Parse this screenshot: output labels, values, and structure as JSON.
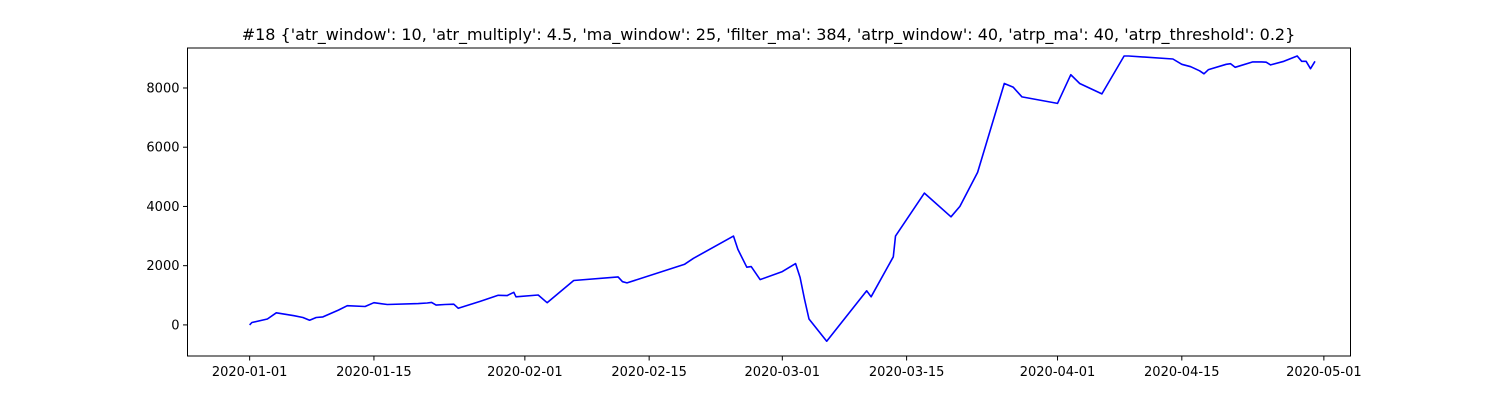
{
  "chart_data": {
    "type": "line",
    "title": "#18 {'atr_window': 10, 'atr_multiply': 4.5, 'ma_window': 25, 'filter_ma': 384, 'atrp_window': 40, 'atrp_ma': 40, 'atrp_threshold': 0.2}",
    "xlabel": "",
    "ylabel": "",
    "xlim": [
      "2019-12-25",
      "2020-05-04"
    ],
    "ylim": [
      -1050,
      9350
    ],
    "x_ticks": [
      "2020-01-01",
      "2020-01-15",
      "2020-02-01",
      "2020-02-15",
      "2020-03-01",
      "2020-03-15",
      "2020-04-01",
      "2020-04-15",
      "2020-05-01"
    ],
    "y_ticks": [
      0,
      2000,
      4000,
      6000,
      8000
    ],
    "grid": false,
    "legend": "none",
    "series": [
      {
        "color": "#0000ff",
        "points": [
          [
            "2020-01-01",
            0
          ],
          [
            "2020-01-01 06:00",
            80
          ],
          [
            "2020-01-03",
            200
          ],
          [
            "2020-01-04",
            410
          ],
          [
            "2020-01-06",
            310
          ],
          [
            "2020-01-07",
            250
          ],
          [
            "2020-01-07 18:00",
            160
          ],
          [
            "2020-01-08 12:00",
            250
          ],
          [
            "2020-01-09 06:00",
            270
          ],
          [
            "2020-01-11",
            500
          ],
          [
            "2020-01-12",
            650
          ],
          [
            "2020-01-14",
            620
          ],
          [
            "2020-01-15",
            750
          ],
          [
            "2020-01-16 12:00",
            690
          ],
          [
            "2020-01-20",
            720
          ],
          [
            "2020-01-21",
            740
          ],
          [
            "2020-01-21 12:00",
            760
          ],
          [
            "2020-01-22",
            670
          ],
          [
            "2020-01-23",
            690
          ],
          [
            "2020-01-24",
            700
          ],
          [
            "2020-01-24 12:00",
            560
          ],
          [
            "2020-01-27",
            800
          ],
          [
            "2020-01-29",
            1000
          ],
          [
            "2020-01-30",
            990
          ],
          [
            "2020-01-30 18:00",
            1100
          ],
          [
            "2020-01-31",
            950
          ],
          [
            "2020-02-02 12:00",
            1010
          ],
          [
            "2020-02-03 12:00",
            750
          ],
          [
            "2020-02-06 12:00",
            1500
          ],
          [
            "2020-02-11 12:00",
            1620
          ],
          [
            "2020-02-12",
            1460
          ],
          [
            "2020-02-12 12:00",
            1420
          ],
          [
            "2020-02-19",
            2050
          ],
          [
            "2020-02-20",
            2250
          ],
          [
            "2020-02-24 12:00",
            3000
          ],
          [
            "2020-02-25",
            2550
          ],
          [
            "2020-02-26",
            1950
          ],
          [
            "2020-02-26 12:00",
            1970
          ],
          [
            "2020-02-27 12:00",
            1530
          ],
          [
            "2020-03-01",
            1800
          ],
          [
            "2020-03-02 12:00",
            2070
          ],
          [
            "2020-03-03",
            1600
          ],
          [
            "2020-03-03 12:00",
            870
          ],
          [
            "2020-03-04",
            200
          ],
          [
            "2020-03-06",
            -550
          ],
          [
            "2020-03-10 12:00",
            1150
          ],
          [
            "2020-03-11",
            950
          ],
          [
            "2020-03-13 12:00",
            2300
          ],
          [
            "2020-03-13 18:00",
            3000
          ],
          [
            "2020-03-17",
            4450
          ],
          [
            "2020-03-20",
            3650
          ],
          [
            "2020-03-21",
            4000
          ],
          [
            "2020-03-23",
            5150
          ],
          [
            "2020-03-26",
            8150
          ],
          [
            "2020-03-27",
            8030
          ],
          [
            "2020-03-28",
            7700
          ],
          [
            "2020-04-01",
            7480
          ],
          [
            "2020-04-02 12:00",
            8450
          ],
          [
            "2020-04-03 12:00",
            8150
          ],
          [
            "2020-04-06",
            7800
          ],
          [
            "2020-04-08 12:00",
            9080
          ],
          [
            "2020-04-09",
            9080
          ],
          [
            "2020-04-14",
            8980
          ],
          [
            "2020-04-15",
            8800
          ],
          [
            "2020-04-16",
            8720
          ],
          [
            "2020-04-17",
            8580
          ],
          [
            "2020-04-17 12:00",
            8480
          ],
          [
            "2020-04-18",
            8620
          ],
          [
            "2020-04-20",
            8800
          ],
          [
            "2020-04-20 12:00",
            8820
          ],
          [
            "2020-04-21",
            8700
          ],
          [
            "2020-04-23",
            8880
          ],
          [
            "2020-04-24",
            8880
          ],
          [
            "2020-04-24 12:00",
            8870
          ],
          [
            "2020-04-25",
            8780
          ],
          [
            "2020-04-26 12:00",
            8900
          ],
          [
            "2020-04-28",
            9080
          ],
          [
            "2020-04-28 12:00",
            8900
          ],
          [
            "2020-04-29",
            8900
          ],
          [
            "2020-04-29 12:00",
            8650
          ],
          [
            "2020-04-30",
            8900
          ]
        ]
      }
    ]
  }
}
